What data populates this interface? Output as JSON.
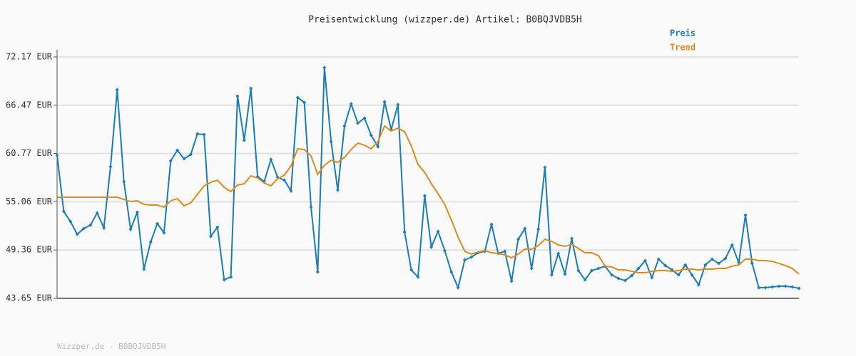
{
  "chart_data": {
    "type": "line",
    "title": "Preisentwicklung (wizzper.de) Artikel: B0BQJVDB5H",
    "footer": "Wizzper.de - B0BQJVDB5H",
    "categories": [
      null,
      null,
      null,
      null,
      null,
      null,
      null,
      null,
      null,
      null,
      null,
      null,
      null,
      null,
      null,
      null,
      null,
      null,
      null,
      null,
      null,
      null,
      null,
      null,
      null,
      null,
      null,
      null,
      null,
      null,
      null,
      null,
      null,
      null,
      null,
      null,
      null,
      null,
      null,
      null,
      null,
      null,
      null,
      null,
      null,
      null,
      null,
      null,
      null,
      null,
      null,
      null,
      null,
      null,
      null,
      null,
      null,
      null,
      null,
      null,
      null,
      null,
      null,
      null,
      null,
      null,
      null,
      null,
      null,
      null,
      null,
      null,
      null,
      null,
      null,
      null,
      null,
      null,
      null,
      null,
      null,
      null,
      null,
      null,
      null,
      null,
      null,
      null,
      null,
      null,
      null,
      null,
      null,
      null,
      null,
      null,
      null,
      null,
      null,
      null,
      null,
      null,
      null,
      null,
      null,
      null,
      null,
      null,
      null,
      null,
      null,
      null
    ],
    "series": [
      {
        "name": "Preis",
        "color": "#1a7db6",
        "markers": true,
        "values": [
          60.56,
          53.91,
          52.73,
          51.22,
          51.89,
          52.31,
          53.74,
          51.98,
          59.21,
          68.3,
          57.45,
          51.81,
          53.83,
          47.1,
          50.3,
          52.48,
          51.39,
          59.89,
          61.15,
          60.14,
          60.64,
          63.08,
          63.0,
          50.97,
          52.06,
          45.84,
          46.17,
          67.54,
          62.33,
          68.47,
          58.04,
          57.45,
          60.06,
          57.95,
          57.61,
          56.35,
          67.37,
          66.79,
          54.42,
          46.76,
          70.91,
          62.16,
          56.44,
          64.01,
          66.62,
          64.35,
          64.93,
          62.92,
          61.57,
          66.87,
          63.59,
          66.53,
          51.47,
          47.01,
          46.17,
          55.76,
          49.71,
          51.56,
          49.29,
          46.76,
          44.91,
          48.19,
          48.53,
          49.03,
          49.2,
          52.4,
          48.95,
          49.2,
          45.67,
          50.63,
          51.89,
          47.18,
          51.81,
          59.13,
          46.42,
          48.95,
          46.51,
          50.72,
          46.93,
          45.84,
          46.93,
          47.18,
          47.44,
          46.42,
          46.0,
          45.75,
          46.34,
          47.18,
          48.11,
          46.09,
          48.28,
          47.52,
          47.01,
          46.42,
          47.6,
          46.42,
          45.25,
          47.6,
          48.28,
          47.77,
          48.36,
          49.96,
          47.86,
          53.49,
          47.77,
          44.91,
          44.91,
          45.0,
          45.08,
          45.08,
          45.0,
          44.83
        ]
      },
      {
        "name": "Trend",
        "color": "#e08a1e",
        "markers": false,
        "values": [
          55.6,
          55.6,
          55.6,
          55.6,
          55.6,
          55.6,
          55.6,
          55.6,
          55.6,
          55.6,
          55.34,
          55.09,
          55.17,
          54.75,
          54.67,
          54.67,
          54.42,
          55.17,
          55.43,
          54.59,
          54.92,
          55.93,
          56.94,
          57.36,
          57.61,
          56.78,
          56.27,
          57.03,
          57.19,
          58.12,
          57.87,
          57.28,
          56.94,
          57.78,
          58.2,
          59.3,
          61.32,
          61.23,
          60.48,
          58.29,
          59.38,
          59.97,
          59.72,
          60.31,
          61.23,
          61.99,
          61.74,
          61.32,
          62.16,
          64.01,
          63.42,
          63.76,
          63.34,
          61.65,
          59.47,
          58.54,
          57.19,
          56.02,
          54.75,
          52.9,
          50.89,
          49.2,
          48.87,
          49.12,
          49.29,
          49.03,
          48.95,
          48.78,
          48.44,
          48.87,
          49.46,
          49.46,
          49.88,
          50.63,
          50.38,
          49.96,
          49.79,
          50.04,
          49.54,
          49.03,
          49.03,
          48.7,
          47.44,
          47.35,
          47.01,
          47.01,
          46.84,
          46.68,
          46.68,
          46.84,
          46.93,
          46.93,
          46.84,
          46.93,
          47.1,
          47.1,
          47.01,
          47.1,
          47.1,
          47.18,
          47.18,
          47.44,
          47.6,
          48.28,
          48.28,
          48.11,
          48.11,
          48.02,
          47.77,
          47.52,
          47.18,
          46.51
        ]
      }
    ],
    "ylim": [
      43.65,
      72.17
    ],
    "yticks": [
      {
        "value": 43.65,
        "label": "43.65 EUR"
      },
      {
        "value": 49.36,
        "label": "49.36 EUR"
      },
      {
        "value": 55.06,
        "label": "55.06 EUR"
      },
      {
        "value": 60.77,
        "label": "60.77 EUR"
      },
      {
        "value": 66.47,
        "label": "66.47 EUR"
      },
      {
        "value": 72.17,
        "label": "72.17 EUR"
      }
    ],
    "grid": true
  }
}
